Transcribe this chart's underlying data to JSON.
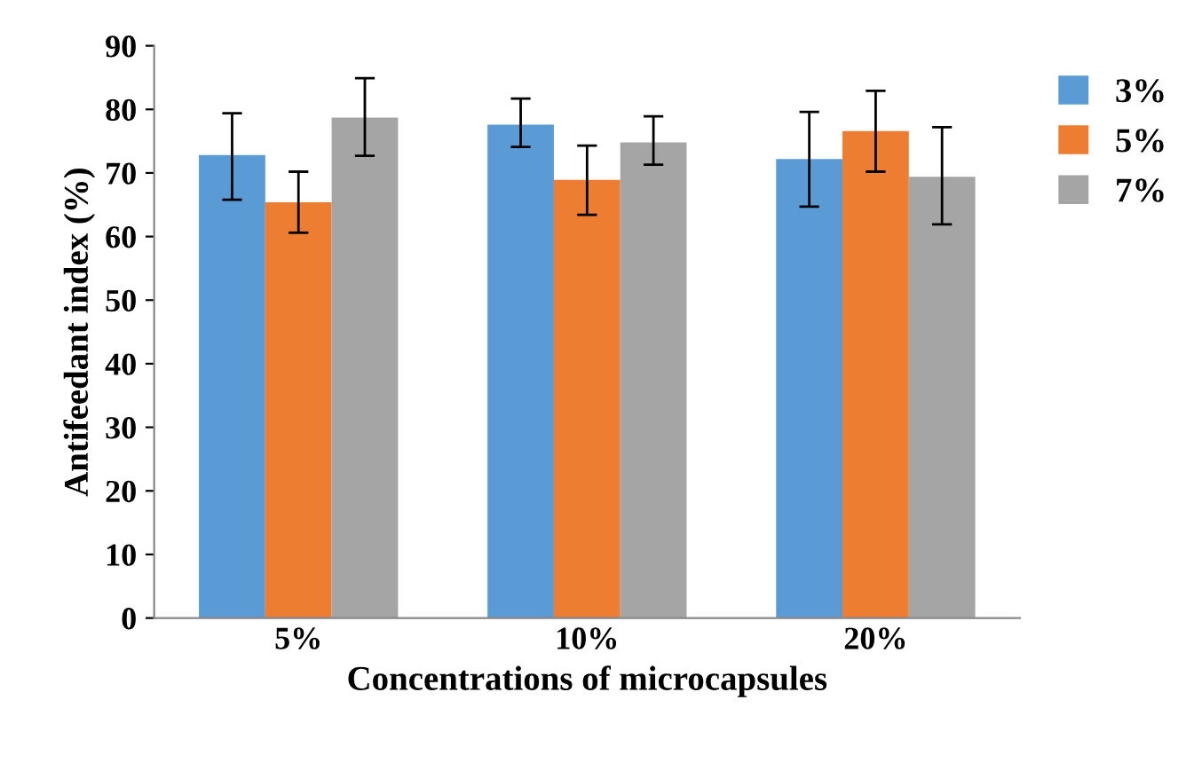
{
  "chart_data": {
    "type": "bar",
    "xlabel": "Concentrations of microcapsules",
    "ylabel": "Antifeedant index (%)",
    "categories": [
      "5%",
      "10%",
      "20%"
    ],
    "series": [
      {
        "name": "3%",
        "color": "#5b9bd5",
        "values": [
          72.8,
          77.6,
          72.2
        ],
        "errors": [
          [
            65.8,
            79.4
          ],
          [
            74.1,
            81.7
          ],
          [
            64.7,
            79.6
          ]
        ]
      },
      {
        "name": "5%",
        "color": "#ed7d31",
        "values": [
          65.4,
          68.9,
          76.6
        ],
        "errors": [
          [
            60.6,
            70.2
          ],
          [
            63.4,
            74.3
          ],
          [
            70.2,
            82.9
          ]
        ]
      },
      {
        "name": "7%",
        "color": "#a5a5a5",
        "values": [
          78.7,
          74.8,
          69.4
        ],
        "errors": [
          [
            72.7,
            84.9
          ],
          [
            71.3,
            78.9
          ],
          [
            61.9,
            77.2
          ]
        ]
      }
    ],
    "ylim": [
      0,
      90
    ],
    "yticks": [
      0,
      10,
      20,
      30,
      40,
      50,
      60,
      70,
      80,
      90
    ],
    "grid": false,
    "legend": "right"
  }
}
